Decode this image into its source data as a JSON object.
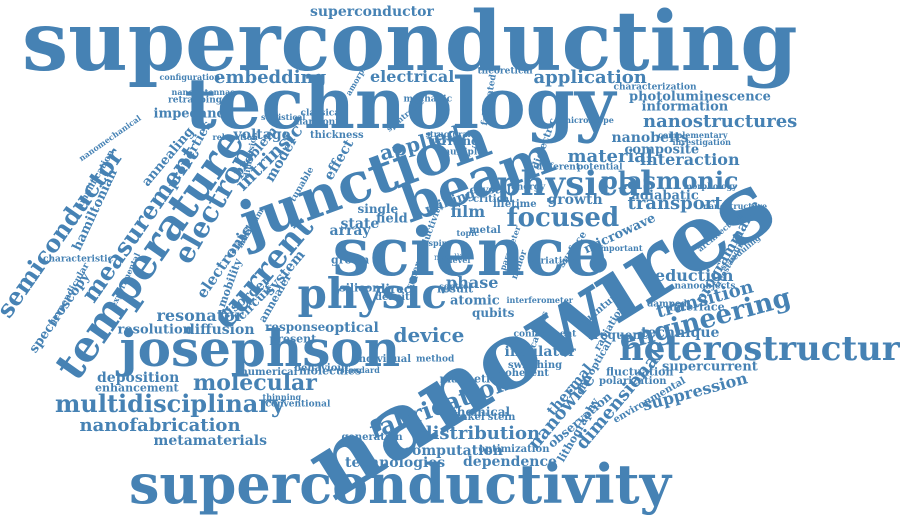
{
  "cloud": {
    "color": "#4682b4",
    "background": "#ffffff",
    "words": [
      {
        "text": "superconducting"
      },
      {
        "text": "technology"
      },
      {
        "text": "superconductivity"
      },
      {
        "text": "nanowires"
      },
      {
        "text": "science"
      },
      {
        "text": "josephson"
      },
      {
        "text": "junction"
      },
      {
        "text": "beam"
      },
      {
        "text": "heterostructure"
      },
      {
        "text": "physic"
      },
      {
        "text": "physical"
      },
      {
        "text": "temperature"
      },
      {
        "text": "focused"
      },
      {
        "text": "engineering"
      },
      {
        "text": "multidisciplinary"
      },
      {
        "text": "measurement"
      },
      {
        "text": "semiconductor"
      },
      {
        "text": "electron"
      },
      {
        "text": "current"
      },
      {
        "text": "molecular"
      },
      {
        "text": "fabrication"
      },
      {
        "text": "plasmonic"
      },
      {
        "text": "nanostructures"
      },
      {
        "text": "application"
      },
      {
        "text": "nanofabrication"
      },
      {
        "text": "distribution"
      },
      {
        "text": "nanowire"
      },
      {
        "text": "dimensional"
      },
      {
        "text": "resonator"
      },
      {
        "text": "material"
      },
      {
        "text": "applied"
      },
      {
        "text": "transport"
      },
      {
        "text": "device"
      },
      {
        "text": "embedding"
      },
      {
        "text": "electrical"
      },
      {
        "text": "superconductor"
      },
      {
        "text": "deposition"
      },
      {
        "text": "metamaterials"
      },
      {
        "text": "computation"
      },
      {
        "text": "technologies"
      },
      {
        "text": "dependence"
      },
      {
        "text": "suppression"
      },
      {
        "text": "reduction"
      },
      {
        "text": "transition"
      },
      {
        "text": "interaction"
      },
      {
        "text": "intrinsic"
      },
      {
        "text": "electronic"
      },
      {
        "text": "programmable"
      },
      {
        "text": "spectroscopy"
      },
      {
        "text": "hamiltonian"
      },
      {
        "text": "microwave"
      },
      {
        "text": "impedance"
      },
      {
        "text": "phase"
      },
      {
        "text": "growth"
      },
      {
        "text": "film"
      },
      {
        "text": "array"
      },
      {
        "text": "system"
      },
      {
        "text": "optical"
      },
      {
        "text": "annealing"
      },
      {
        "text": "properties"
      },
      {
        "text": "voltage"
      },
      {
        "text": "nanobelts"
      },
      {
        "text": "composite"
      },
      {
        "text": "information"
      },
      {
        "text": "photoluminescence"
      },
      {
        "text": "adiabatic"
      },
      {
        "text": "supercurrent"
      },
      {
        "text": "insulator"
      },
      {
        "text": "thermal"
      },
      {
        "text": "chemical"
      },
      {
        "text": "technique"
      },
      {
        "text": "interface"
      },
      {
        "text": "diffusion"
      },
      {
        "text": "resolution"
      },
      {
        "text": "response"
      },
      {
        "text": "present"
      },
      {
        "text": "enhancement"
      },
      {
        "text": "molecules"
      },
      {
        "text": "behaviour"
      },
      {
        "text": "numerical"
      },
      {
        "text": "magnetic"
      },
      {
        "text": "qubits"
      },
      {
        "text": "atomic"
      },
      {
        "text": "frequency"
      },
      {
        "text": "fluctuation"
      },
      {
        "text": "polarization"
      },
      {
        "text": "environmental"
      },
      {
        "text": "observation"
      },
      {
        "text": "lithography"
      },
      {
        "text": "finkel'stein"
      },
      {
        "text": "optimization"
      },
      {
        "text": "generation"
      },
      {
        "text": "conventional"
      },
      {
        "text": "characteristic"
      },
      {
        "text": "perpendicular"
      },
      {
        "text": "experimental"
      },
      {
        "text": "nanoantennas"
      },
      {
        "text": "retrapping"
      },
      {
        "text": "configuration"
      },
      {
        "text": "amorphous"
      },
      {
        "text": "mechanic"
      },
      {
        "text": "theoretical"
      },
      {
        "text": "fabricated"
      },
      {
        "text": "characterization"
      },
      {
        "text": "microscope"
      },
      {
        "text": "writing"
      },
      {
        "text": "milling"
      },
      {
        "text": "state"
      },
      {
        "text": "field"
      },
      {
        "text": "single"
      },
      {
        "text": "crystal"
      },
      {
        "text": "critical"
      },
      {
        "text": "lifetime"
      },
      {
        "text": "metal"
      },
      {
        "text": "silicon"
      },
      {
        "text": "direct"
      },
      {
        "text": "density"
      },
      {
        "text": "result"
      },
      {
        "text": "grown"
      },
      {
        "text": "disorder"
      },
      {
        "text": "circuit"
      },
      {
        "text": "mobility"
      },
      {
        "text": "model"
      },
      {
        "text": "problem"
      },
      {
        "text": "effect"
      },
      {
        "text": "thickness"
      },
      {
        "text": "harmonic"
      },
      {
        "text": "classical"
      },
      {
        "text": "statistical"
      },
      {
        "text": "relaxation"
      },
      {
        "text": "dimension"
      },
      {
        "text": "tunable"
      },
      {
        "text": "catalyst"
      },
      {
        "text": "maximum"
      },
      {
        "text": "nanomechanical"
      },
      {
        "text": "amplification"
      },
      {
        "text": "annealer"
      },
      {
        "text": "cavities"
      },
      {
        "text": "switching"
      },
      {
        "text": "coherent"
      },
      {
        "text": "individual"
      },
      {
        "text": "method"
      },
      {
        "text": "standard"
      },
      {
        "text": "thinning"
      },
      {
        "text": "chiroptical"
      },
      {
        "text": "confinement"
      },
      {
        "text": "radiation"
      },
      {
        "text": "quantum"
      },
      {
        "text": "damped"
      },
      {
        "text": "nanoobjects"
      },
      {
        "text": "freestanding"
      },
      {
        "text": "scheduling"
      },
      {
        "text": "architecture"
      },
      {
        "text": "nanostructure"
      },
      {
        "text": "morphology"
      },
      {
        "text": "investigation"
      },
      {
        "text": "complementary"
      },
      {
        "text": "potential"
      },
      {
        "text": "different"
      },
      {
        "text": "dielectric"
      },
      {
        "text": "multiple"
      },
      {
        "text": "structural"
      },
      {
        "text": "spintronic"
      },
      {
        "text": "surface"
      },
      {
        "text": "variation"
      },
      {
        "text": "important"
      },
      {
        "text": "energy"
      },
      {
        "text": "topic"
      },
      {
        "text": "control"
      },
      {
        "text": "minor"
      },
      {
        "text": "parameter"
      },
      {
        "text": "interferometer"
      },
      {
        "text": "superconductivity"
      },
      {
        "text": "spin"
      },
      {
        "text": "level"
      },
      {
        "text": "metallic"
      }
    ]
  }
}
